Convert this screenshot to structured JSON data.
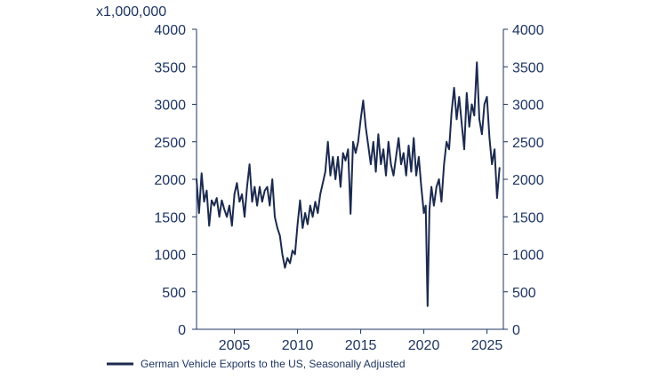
{
  "chart_data": {
    "type": "line",
    "title": "",
    "xlabel": "",
    "ylabel": "x1,000,000",
    "xlim": [
      2002,
      2026.3
    ],
    "ylim": [
      0,
      4000
    ],
    "x_ticks": [
      2005,
      2010,
      2015,
      2020,
      2025
    ],
    "y_ticks": [
      0,
      500,
      1000,
      1500,
      2000,
      2500,
      3000,
      3500,
      4000
    ],
    "grid": false,
    "legend": "bottom-left",
    "colors": {
      "series": "#1b2a4e",
      "axis": "#1d3461"
    },
    "series": [
      {
        "name": "German Vehicle Exports to the US, Seasonally Adjusted",
        "x": [
          2002.0,
          2002.2,
          2002.4,
          2002.6,
          2002.8,
          2003.0,
          2003.2,
          2003.4,
          2003.6,
          2003.8,
          2004.0,
          2004.2,
          2004.4,
          2004.6,
          2004.8,
          2005.0,
          2005.2,
          2005.4,
          2005.6,
          2005.8,
          2006.0,
          2006.2,
          2006.4,
          2006.6,
          2006.8,
          2007.0,
          2007.2,
          2007.4,
          2007.6,
          2007.8,
          2008.0,
          2008.2,
          2008.4,
          2008.6,
          2008.8,
          2009.0,
          2009.2,
          2009.4,
          2009.6,
          2009.8,
          2010.0,
          2010.2,
          2010.4,
          2010.6,
          2010.8,
          2011.0,
          2011.2,
          2011.4,
          2011.6,
          2011.8,
          2012.0,
          2012.2,
          2012.4,
          2012.6,
          2012.8,
          2013.0,
          2013.2,
          2013.4,
          2013.6,
          2013.8,
          2014.0,
          2014.2,
          2014.4,
          2014.6,
          2014.8,
          2015.0,
          2015.2,
          2015.4,
          2015.6,
          2015.8,
          2016.0,
          2016.2,
          2016.4,
          2016.6,
          2016.8,
          2017.0,
          2017.2,
          2017.4,
          2017.6,
          2017.8,
          2018.0,
          2018.2,
          2018.4,
          2018.6,
          2018.8,
          2019.0,
          2019.2,
          2019.4,
          2019.6,
          2019.8,
          2020.0,
          2020.15,
          2020.3,
          2020.45,
          2020.6,
          2020.8,
          2021.0,
          2021.2,
          2021.4,
          2021.6,
          2021.8,
          2022.0,
          2022.2,
          2022.4,
          2022.6,
          2022.8,
          2023.0,
          2023.2,
          2023.4,
          2023.6,
          2023.8,
          2024.0,
          2024.2,
          2024.4,
          2024.6,
          2024.8,
          2025.0,
          2025.2,
          2025.4,
          2025.6,
          2025.8,
          2026.0
        ],
        "values": [
          2000,
          1550,
          2080,
          1700,
          1850,
          1380,
          1720,
          1650,
          1750,
          1500,
          1720,
          1600,
          1500,
          1650,
          1380,
          1800,
          1950,
          1700,
          1800,
          1500,
          1900,
          2200,
          1700,
          1900,
          1650,
          1900,
          1700,
          1850,
          1900,
          1650,
          2000,
          1500,
          1350,
          1250,
          1000,
          820,
          950,
          880,
          1050,
          1000,
          1400,
          1720,
          1350,
          1550,
          1400,
          1650,
          1500,
          1700,
          1550,
          1800,
          1950,
          2100,
          2500,
          2050,
          2300,
          2000,
          2300,
          1900,
          2350,
          2250,
          2400,
          1540,
          2500,
          2350,
          2500,
          2800,
          3050,
          2700,
          2450,
          2200,
          2500,
          2100,
          2600,
          2200,
          2400,
          2050,
          2500,
          2200,
          2050,
          2300,
          2550,
          2200,
          2350,
          2050,
          2450,
          2100,
          2550,
          2050,
          2300,
          1900,
          1550,
          1650,
          310,
          1600,
          1900,
          1650,
          1900,
          2000,
          1700,
          2200,
          2500,
          2400,
          2900,
          3220,
          2800,
          3100,
          2750,
          2400,
          3150,
          2700,
          3000,
          2850,
          3560,
          2800,
          2600,
          3000,
          3100,
          2550,
          2200,
          2400,
          1750,
          2150
        ]
      }
    ]
  }
}
